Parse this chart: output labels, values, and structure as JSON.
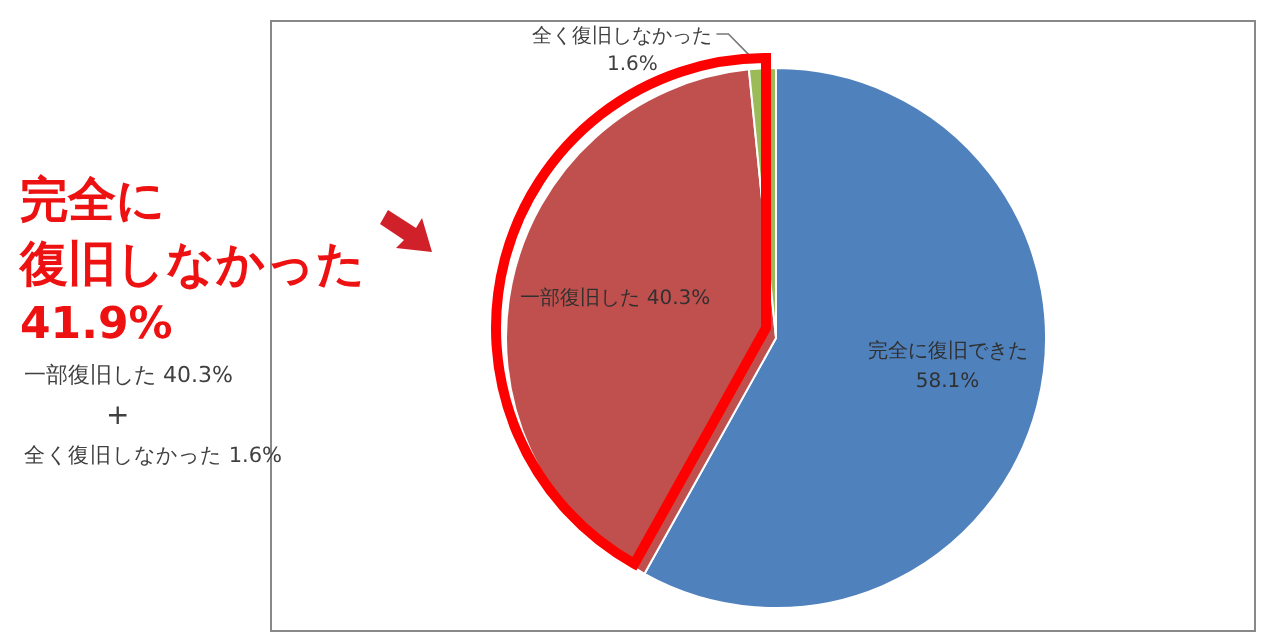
{
  "chart_data": {
    "type": "pie",
    "categories": [
      "完全に復旧できた",
      "一部復旧した",
      "全く復旧しなかった"
    ],
    "values": [
      58.1,
      40.3,
      1.6
    ],
    "colors": [
      "#4f81bd",
      "#c0504d",
      "#9bbb59"
    ],
    "value_labels": [
      "58.1%",
      "40.3%",
      "1.6%"
    ],
    "annotations": [
      "完全に",
      "復旧しなかった",
      "41.9%",
      "一部復旧した  40.3%",
      "+",
      "全く復旧しなかった 1.6%"
    ]
  }
}
